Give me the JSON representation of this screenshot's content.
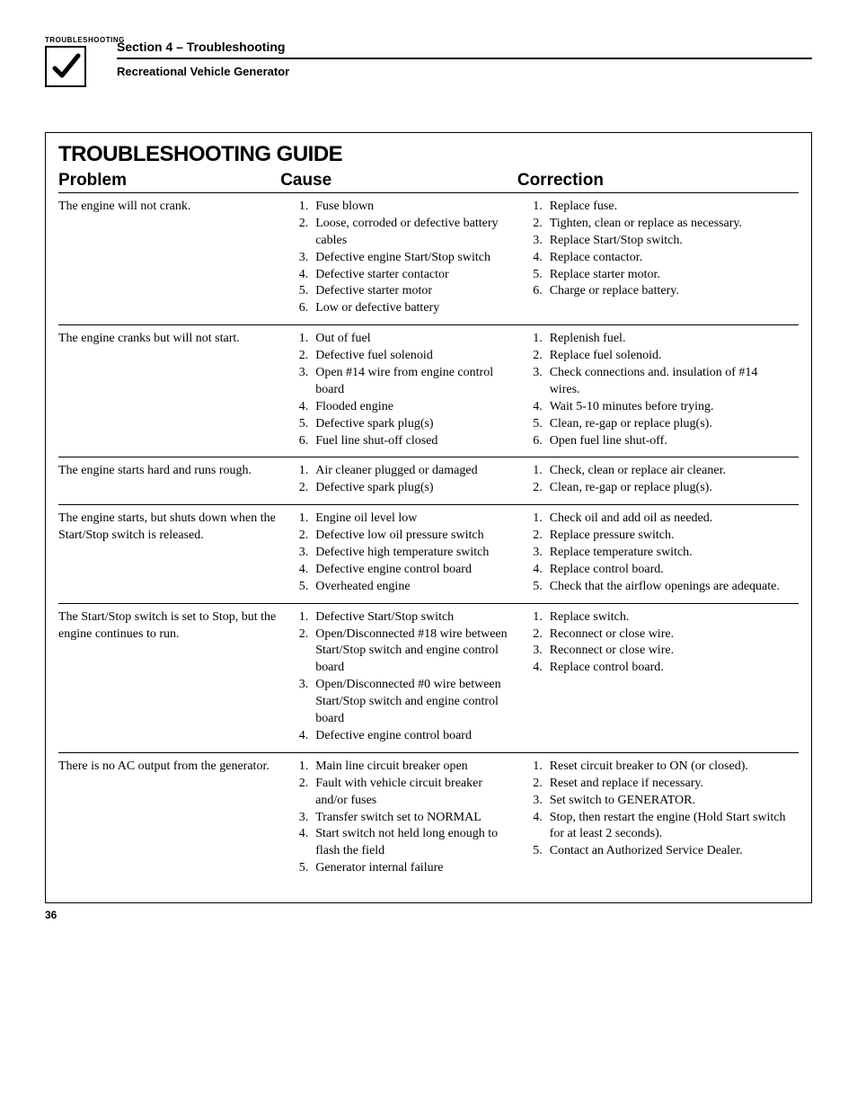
{
  "header": {
    "icon_label": "TROUBLESHOOTING",
    "section_title": "Section 4 – Troubleshooting",
    "subtitle": "Recreational Vehicle Generator"
  },
  "guide_title": "TROUBLESHOOTING GUIDE",
  "columns": {
    "problem": "Problem",
    "cause": "Cause",
    "correction": "Correction"
  },
  "rows": [
    {
      "problem": "The engine will not crank.",
      "causes": [
        "Fuse blown",
        "Loose, corroded or defective battery cables",
        "Defective engine Start/Stop switch",
        "Defective starter contactor",
        "Defective starter motor",
        "Low or defective battery"
      ],
      "corrections": [
        "Replace fuse.",
        "Tighten, clean or replace as necessary.",
        "Replace Start/Stop switch.",
        "Replace contactor.",
        "Replace starter motor.",
        "Charge or replace battery."
      ]
    },
    {
      "problem": "The engine cranks but will not start.",
      "causes": [
        "Out of fuel",
        "Defective fuel solenoid",
        "Open #14 wire from engine control board",
        "Flooded engine",
        "Defective spark plug(s)",
        "Fuel line shut-off closed"
      ],
      "corrections": [
        "Replenish fuel.",
        "Replace fuel solenoid.",
        "Check connections and. insulation of #14 wires.",
        "Wait 5-10 minutes before trying.",
        "Clean, re-gap or replace plug(s).",
        "Open fuel line shut-off."
      ]
    },
    {
      "problem": "The engine starts hard and runs rough.",
      "causes": [
        "Air cleaner plugged or damaged",
        "Defective spark plug(s)"
      ],
      "corrections": [
        "Check, clean or replace air cleaner.",
        "Clean, re-gap or replace plug(s)."
      ]
    },
    {
      "problem": "The engine starts, but shuts down when the Start/Stop switch is released.",
      "causes": [
        "Engine oil level low",
        "Defective low oil pressure switch",
        "Defective high temperature switch",
        "Defective engine control board",
        "Overheated engine"
      ],
      "corrections": [
        "Check oil and add oil as needed.",
        "Replace pressure switch.",
        "Replace temperature switch.",
        "Replace control board.",
        "Check that the airflow openings are adequate."
      ]
    },
    {
      "problem": "The Start/Stop switch is set to Stop, but the engine continues to run.",
      "causes": [
        "Defective Start/Stop switch",
        "Open/Disconnected #18 wire between Start/Stop switch and engine control board",
        "Open/Disconnected #0 wire between Start/Stop switch and engine control board",
        "Defective engine control board"
      ],
      "corrections": [
        "Replace switch.",
        "Reconnect or close wire.",
        "Reconnect or close wire.",
        "Replace control board."
      ]
    },
    {
      "problem": "There is no AC output from the generator.",
      "causes": [
        "Main line circuit breaker open",
        "Fault with vehicle circuit breaker and/or fuses",
        "Transfer switch set to NORMAL",
        "Start switch not held long enough to flash the field",
        "Generator internal failure"
      ],
      "corrections": [
        "Reset circuit breaker to ON (or closed).",
        "Reset and replace if necessary.",
        "Set switch to GENERATOR.",
        "Stop, then restart the engine (Hold Start switch for at least 2 seconds).",
        "Contact an Authorized Service Dealer."
      ]
    }
  ],
  "page_number": "36"
}
